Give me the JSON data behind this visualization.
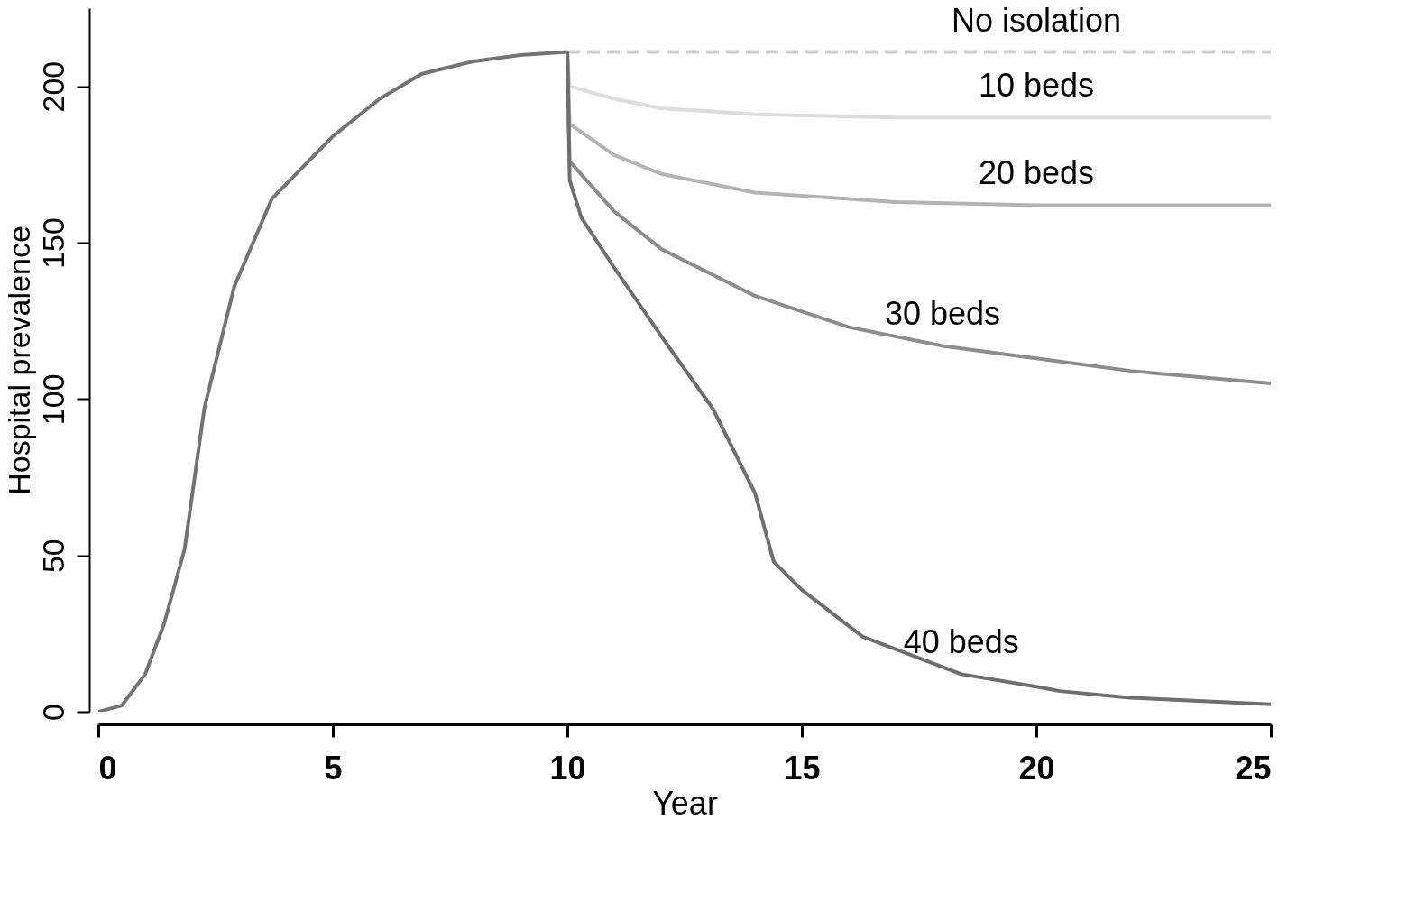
{
  "chart_data": {
    "type": "line",
    "xlabel": "Year",
    "ylabel": "Hospital prevalence",
    "xlim": [
      0,
      25
    ],
    "ylim": [
      0,
      225
    ],
    "xticks": [
      0,
      5,
      10,
      15,
      20,
      25
    ],
    "yticks": [
      0,
      50,
      100,
      150,
      200
    ],
    "grid": false,
    "legend": false,
    "marker": "none",
    "series": [
      {
        "color": "#737373",
        "x": [
          0,
          0.5,
          1,
          1.4,
          1.84,
          2.26,
          2.9,
          3.7,
          5,
          6,
          6.9,
          8,
          9,
          10
        ],
        "values": [
          0,
          2,
          12,
          28,
          52,
          97,
          136,
          164,
          184,
          196,
          204,
          208,
          210,
          211
        ]
      },
      {
        "name": "No isolation",
        "color": "#cfcfcf",
        "line_style": "dashed",
        "x": [
          10,
          15,
          20,
          25
        ],
        "values": [
          211,
          211,
          211,
          211
        ]
      },
      {
        "name": "10 beds",
        "color": "#dcdcdc",
        "x": [
          10,
          10.05,
          11,
          12,
          14,
          17,
          20,
          25
        ],
        "values": [
          211,
          200,
          196,
          193,
          191,
          190,
          190,
          190
        ]
      },
      {
        "name": "20 beds",
        "color": "#b3b3b3",
        "x": [
          10,
          10.05,
          11,
          12,
          14,
          17,
          20,
          25
        ],
        "values": [
          211,
          188,
          178,
          172,
          166,
          163,
          162,
          162
        ]
      },
      {
        "name": "30 beds",
        "color": "#8c8c8c",
        "x": [
          10,
          10.05,
          11,
          12,
          14,
          16,
          18,
          20,
          22,
          25
        ],
        "values": [
          211,
          176,
          160,
          148,
          133,
          123,
          117,
          113,
          109,
          105
        ]
      },
      {
        "name": "40 beds",
        "color": "#6e6e6e",
        "x": [
          10,
          10.05,
          10.3,
          11,
          12.1,
          13.1,
          14,
          14.4,
          15,
          16.3,
          18.4,
          20,
          20.5,
          22,
          25
        ],
        "values": [
          211,
          170,
          158,
          142,
          118,
          97,
          70,
          48,
          39,
          24,
          12,
          8,
          6.6,
          4.5,
          2.4
        ]
      }
    ]
  }
}
